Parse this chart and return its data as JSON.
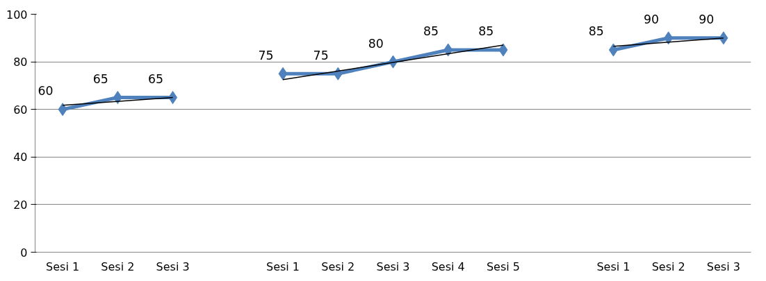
{
  "chart_data": {
    "type": "line",
    "categories": [
      "Sesi 1",
      "Sesi 2",
      "Sesi 3",
      null,
      "Sesi 1",
      "Sesi 2",
      "Sesi 3",
      "Sesi 4",
      "Sesi 5",
      null,
      "Sesi 1",
      "Sesi 2",
      "Sesi 3"
    ],
    "series": [
      {
        "color": "#4f81bd",
        "values": [
          60,
          65,
          65,
          null,
          75,
          75,
          80,
          85,
          85,
          null,
          85,
          90,
          90
        ],
        "marker": "diamond",
        "data_labels": true
      },
      {
        "type": "line",
        "color": "#000000",
        "marker": "none",
        "values": [
          61.7,
          null,
          65,
          null,
          null,
          null,
          null,
          null,
          null,
          null,
          null,
          null,
          null
        ]
      },
      {
        "type": "line",
        "color": "#000000",
        "marker": "none",
        "values": [
          null,
          null,
          null,
          null,
          72.5,
          null,
          null,
          null,
          87,
          null,
          null,
          null,
          null
        ]
      },
      {
        "type": "line",
        "color": "#000000",
        "marker": "none",
        "values": [
          null,
          null,
          null,
          null,
          null,
          null,
          null,
          null,
          null,
          null,
          86.5,
          null,
          90
        ]
      }
    ],
    "ylim": [
      0,
      100
    ],
    "yticks": [
      0,
      20,
      40,
      60,
      80,
      100
    ],
    "grid": "y"
  }
}
